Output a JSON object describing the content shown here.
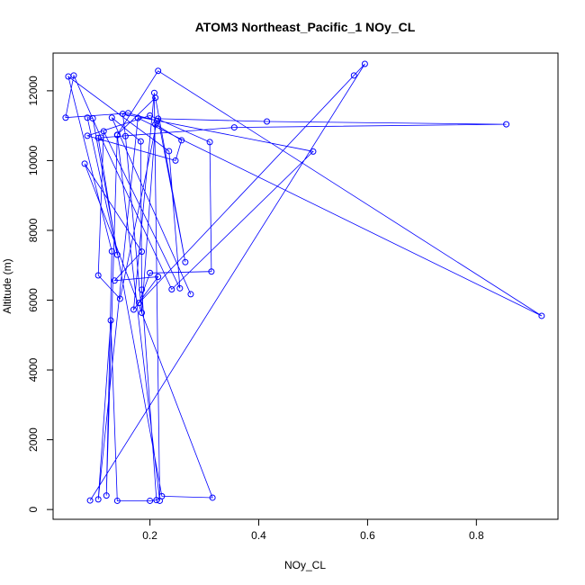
{
  "chart_data": {
    "type": "line",
    "title": "ATOM3 Northeast_Pacific_1 NOy_CL",
    "xlabel": "NOy_CL",
    "ylabel": "Altitude (m)",
    "xlim": [
      0.022,
      0.95
    ],
    "ylim": [
      -280,
      13080
    ],
    "xticks": [
      0.2,
      0.4,
      0.6,
      0.8
    ],
    "xtick_labels": [
      "0.2",
      "0.4",
      "0.6",
      "0.8"
    ],
    "yticks": [
      0,
      2000,
      4000,
      6000,
      8000,
      10000,
      12000
    ],
    "ytick_labels": [
      "0",
      "2000",
      "4000",
      "6000",
      "8000",
      "10000",
      "12000"
    ],
    "grid": false,
    "series": [
      {
        "color": "#0000ff",
        "marker": "open-circle",
        "x": [
          0.09,
          0.595,
          0.575,
          0.18,
          0.2,
          0.313,
          0.31,
          0.2,
          0.085,
          0.247,
          0.258,
          0.21,
          0.185,
          0.155,
          0.15,
          0.5,
          0.24,
          0.11,
          0.06,
          0.045,
          0.16,
          0.213,
          0.145,
          0.105,
          0.115,
          0.255,
          0.235,
          0.05,
          0.13,
          0.12,
          0.14,
          0.218,
          0.208,
          0.17,
          0.215,
          0.135,
          0.185,
          0.08,
          0.315,
          0.222,
          0.095,
          0.085,
          0.14,
          0.105,
          0.355,
          0.855,
          0.415,
          0.215,
          0.265,
          0.21,
          0.14,
          0.215,
          0.92,
          0.178,
          0.105,
          0.128,
          0.14,
          0.2,
          0.212,
          0.185,
          0.183,
          0.13,
          0.275
        ],
        "y": [
          260,
          12770,
          12440,
          5920,
          6780,
          6820,
          10530,
          11290,
          10710,
          10000,
          10580,
          11040,
          5640,
          10700,
          11340,
          10260,
          6310,
          10660,
          12440,
          11230,
          11360,
          11140,
          6040,
          6710,
          10840,
          6340,
          10270,
          12410,
          7400,
          400,
          10730,
          250,
          11940,
          5730,
          6670,
          6560,
          7390,
          9910,
          340,
          380,
          11210,
          11230,
          7300,
          10650,
          10950,
          11040,
          11120,
          11200,
          7090,
          11800,
          10740,
          12570,
          5550,
          11220,
          290,
          5420,
          250,
          250,
          270,
          6300,
          10550,
          11230,
          6170
        ]
      }
    ]
  }
}
